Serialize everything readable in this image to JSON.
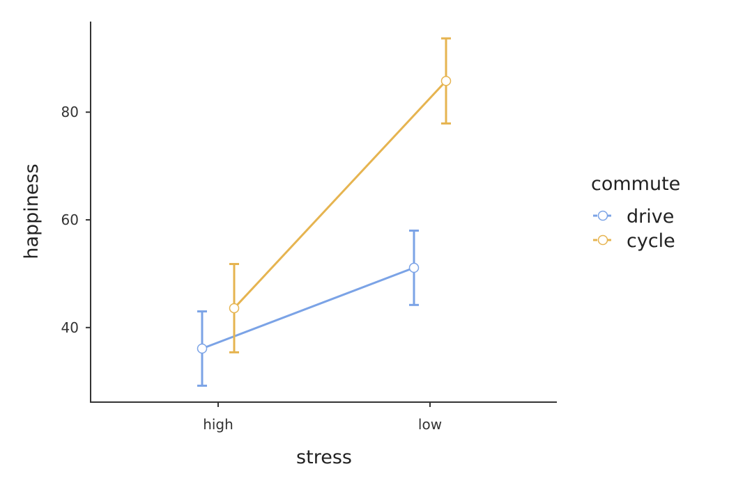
{
  "chart_data": {
    "type": "line",
    "title": "",
    "xlabel": "stress",
    "ylabel": "happiness",
    "categories": [
      "high",
      "low"
    ],
    "yticks": [
      40,
      60,
      80
    ],
    "ylim": [
      26.2,
      96.7
    ],
    "grid": false,
    "legend": {
      "title": "commute",
      "position": "right"
    },
    "series": [
      {
        "name": "drive",
        "color": "#7ba3e6",
        "values": [
          36.1,
          51.1
        ],
        "lower": [
          29.2,
          44.2
        ],
        "upper": [
          43.0,
          58.0
        ]
      },
      {
        "name": "cycle",
        "color": "#e6b450",
        "values": [
          43.6,
          85.8
        ],
        "lower": [
          35.4,
          77.9
        ],
        "upper": [
          51.8,
          93.7
        ]
      }
    ]
  }
}
